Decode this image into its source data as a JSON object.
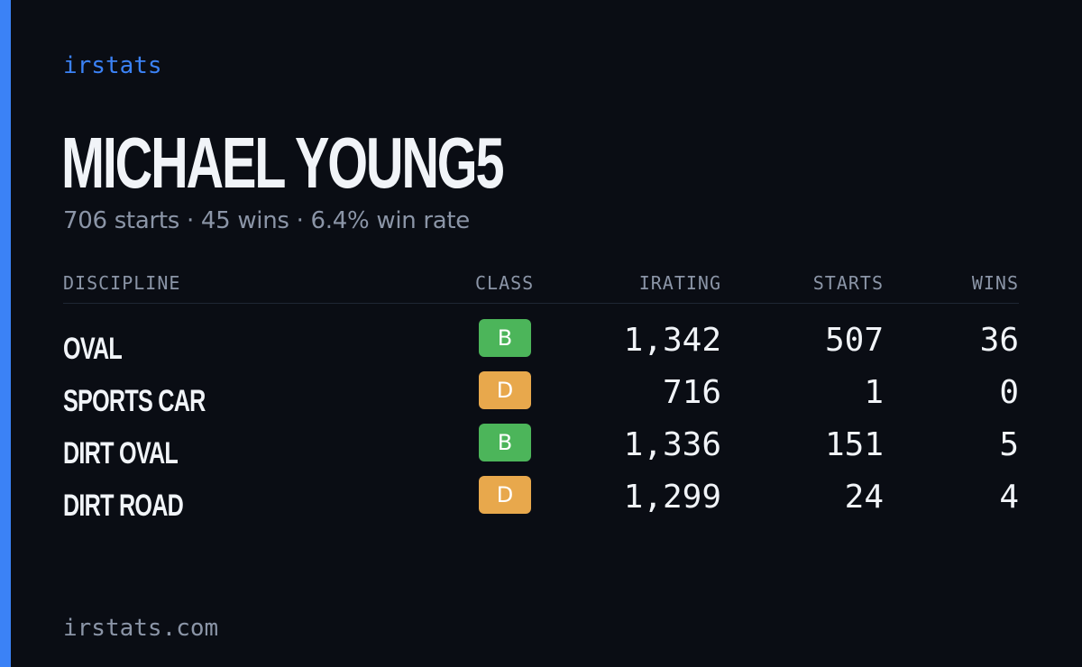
{
  "brand": "irstats",
  "title": "MICHAEL YOUNG5",
  "subtitle": "706 starts · 45 wins · 6.4% win rate",
  "table": {
    "headers": {
      "discipline": "DISCIPLINE",
      "class": "CLASS",
      "irating": "IRATING",
      "starts": "STARTS",
      "wins": "WINS"
    },
    "rows": [
      {
        "discipline": "OVAL",
        "class": "B",
        "class_color": "#4cb55a",
        "irating": "1,342",
        "starts": "507",
        "wins": "36"
      },
      {
        "discipline": "SPORTS CAR",
        "class": "D",
        "class_color": "#e8a84c",
        "irating": "716",
        "starts": "1",
        "wins": "0"
      },
      {
        "discipline": "DIRT OVAL",
        "class": "B",
        "class_color": "#4cb55a",
        "irating": "1,336",
        "starts": "151",
        "wins": "5"
      },
      {
        "discipline": "DIRT ROAD",
        "class": "D",
        "class_color": "#e8a84c",
        "irating": "1,299",
        "starts": "24",
        "wins": "4"
      }
    ]
  },
  "footer": "irstats.com",
  "colors": {
    "background": "#0a0d14",
    "accent": "#3b82f6",
    "text": "#f1f4f8",
    "muted": "#8b95a7",
    "class_b": "#4cb55a",
    "class_d": "#e8a84c"
  }
}
